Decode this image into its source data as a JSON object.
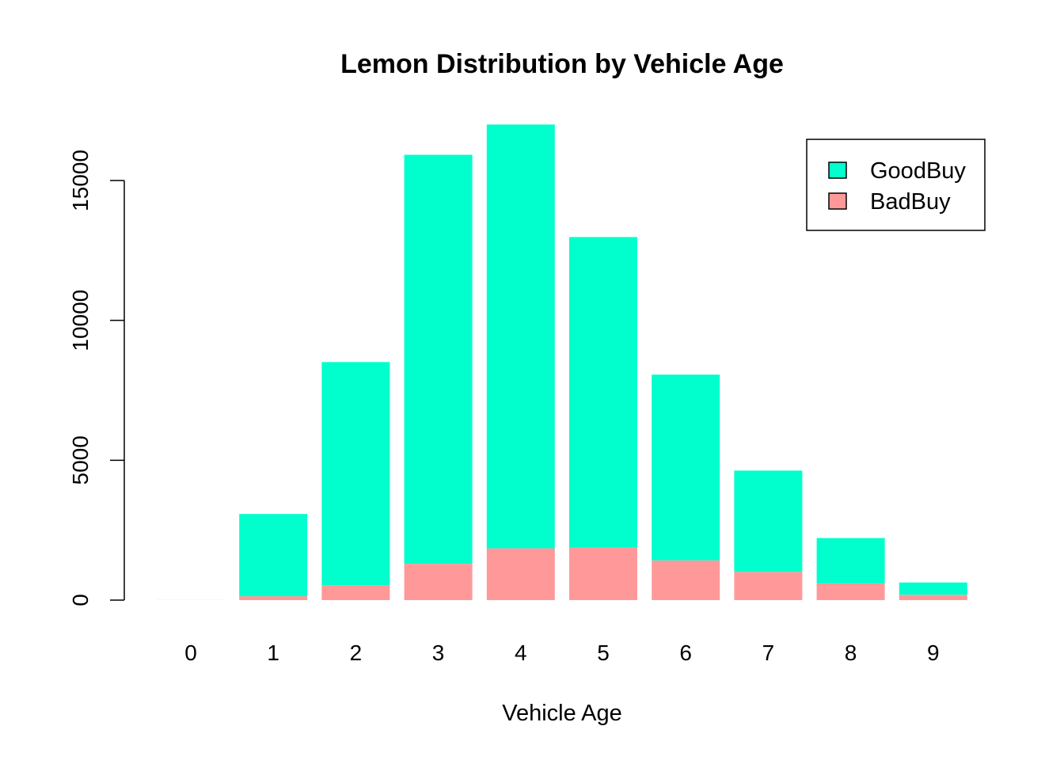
{
  "chart_data": {
    "type": "bar",
    "stacked": true,
    "title": "Lemon Distribution by Vehicle Age",
    "xlabel": "Vehicle Age",
    "ylabel": "",
    "categories": [
      "0",
      "1",
      "2",
      "3",
      "4",
      "5",
      "6",
      "7",
      "8",
      "9"
    ],
    "series": [
      {
        "name": "BadBuy",
        "color": "#ff9999",
        "values": [
          1,
          140,
          530,
          1300,
          1850,
          1880,
          1420,
          1010,
          600,
          190
        ]
      },
      {
        "name": "GoodBuy",
        "color": "#00ffcc",
        "values": [
          2,
          2940,
          7980,
          14620,
          15150,
          11100,
          6640,
          3620,
          1620,
          440
        ]
      }
    ],
    "yticks": [
      0,
      5000,
      10000,
      15000
    ],
    "ylim": [
      0,
      17200
    ],
    "legend": {
      "position": "top-right",
      "entries": [
        "GoodBuy",
        "BadBuy"
      ]
    },
    "grid": false
  }
}
